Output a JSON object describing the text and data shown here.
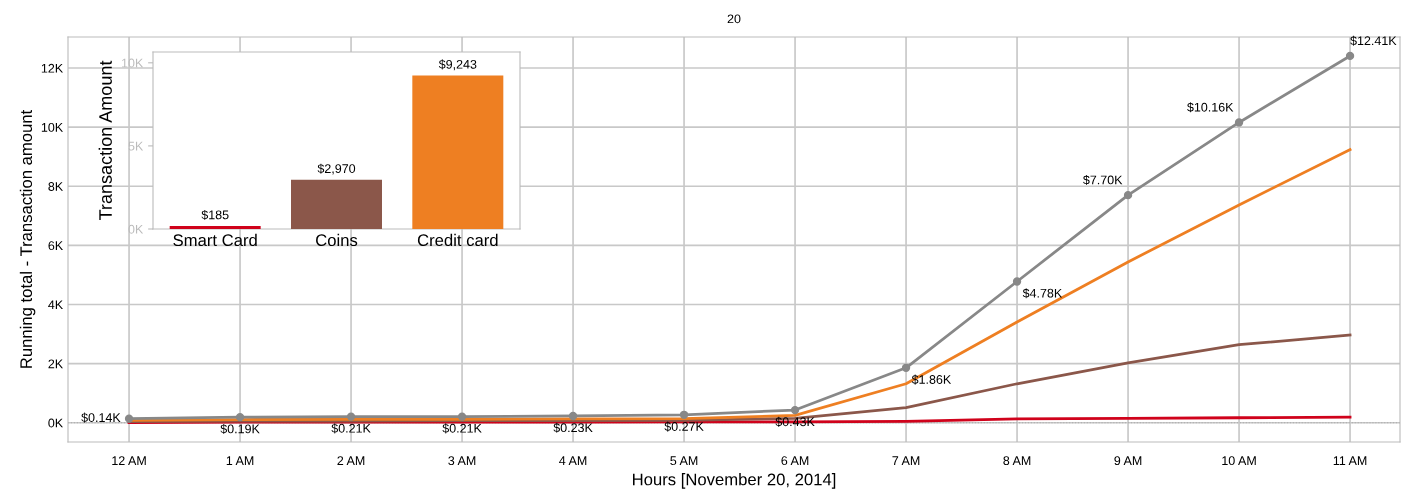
{
  "chart_data": [
    {
      "type": "line",
      "title": "20",
      "xlabel": "Hours [November 20, 2014]",
      "ylabel": "Running total - Transaction amount",
      "categories": [
        "12 AM",
        "1 AM",
        "2 AM",
        "3 AM",
        "4 AM",
        "5 AM",
        "6 AM",
        "7 AM",
        "8 AM",
        "9 AM",
        "10 AM",
        "11 AM"
      ],
      "series": [
        {
          "color": "#d0021b",
          "marker": "none",
          "values": [
            10,
            20,
            20,
            20,
            20,
            30,
            30,
            50,
            130,
            150,
            170,
            190
          ]
        },
        {
          "color": "#8b574a",
          "marker": "none",
          "values": [
            40,
            60,
            60,
            70,
            70,
            80,
            150,
            510,
            1320,
            2030,
            2640,
            2970
          ]
        },
        {
          "color": "#ee7f22",
          "marker": "none",
          "values": [
            80,
            110,
            120,
            120,
            130,
            140,
            250,
            1320,
            3410,
            5440,
            7370,
            9240
          ]
        },
        {
          "color": "#888888",
          "marker": "circle",
          "values": [
            140,
            190,
            210,
            210,
            230,
            270,
            430,
            1860,
            4780,
            7700,
            10160,
            12410
          ],
          "value_labels": [
            "$0.14K",
            "$0.19K",
            "$0.21K",
            "$0.21K",
            "$0.23K",
            "$0.27K",
            "$0.43K",
            "$1.86K",
            "$4.78K",
            "$7.70K",
            "$10.16K",
            "$12.41K"
          ]
        }
      ],
      "ylim": [
        -650,
        13050
      ],
      "yticks": [
        {
          "value": 0,
          "label": "0K"
        },
        {
          "value": 2000,
          "label": "2K"
        },
        {
          "value": 4000,
          "label": "4K"
        },
        {
          "value": 6000,
          "label": "6K"
        },
        {
          "value": 8000,
          "label": "8K"
        },
        {
          "value": 10000,
          "label": "10K"
        },
        {
          "value": 12000,
          "label": "12K"
        }
      ],
      "grid": true,
      "ref_lines": [
        {
          "axis": "y",
          "value": 0,
          "color": "#aaaaaa",
          "line_style": "dotted"
        }
      ]
    },
    {
      "type": "bar",
      "ylabel": "Transaction Amount",
      "categories": [
        "Smart Card",
        "Coins",
        "Credit card"
      ],
      "values": [
        185,
        2970,
        9243
      ],
      "colors": [
        "#d0021b",
        "#8b574a",
        "#ee7f22"
      ],
      "value_labels": [
        "$185",
        "$2,970",
        "$9,243"
      ],
      "ylim": [
        0,
        10650
      ],
      "yticks": [
        {
          "value": 0,
          "label": "0K"
        },
        {
          "value": 5000,
          "label": "5K"
        },
        {
          "value": 10000,
          "label": "10K"
        }
      ],
      "grid": false
    }
  ]
}
